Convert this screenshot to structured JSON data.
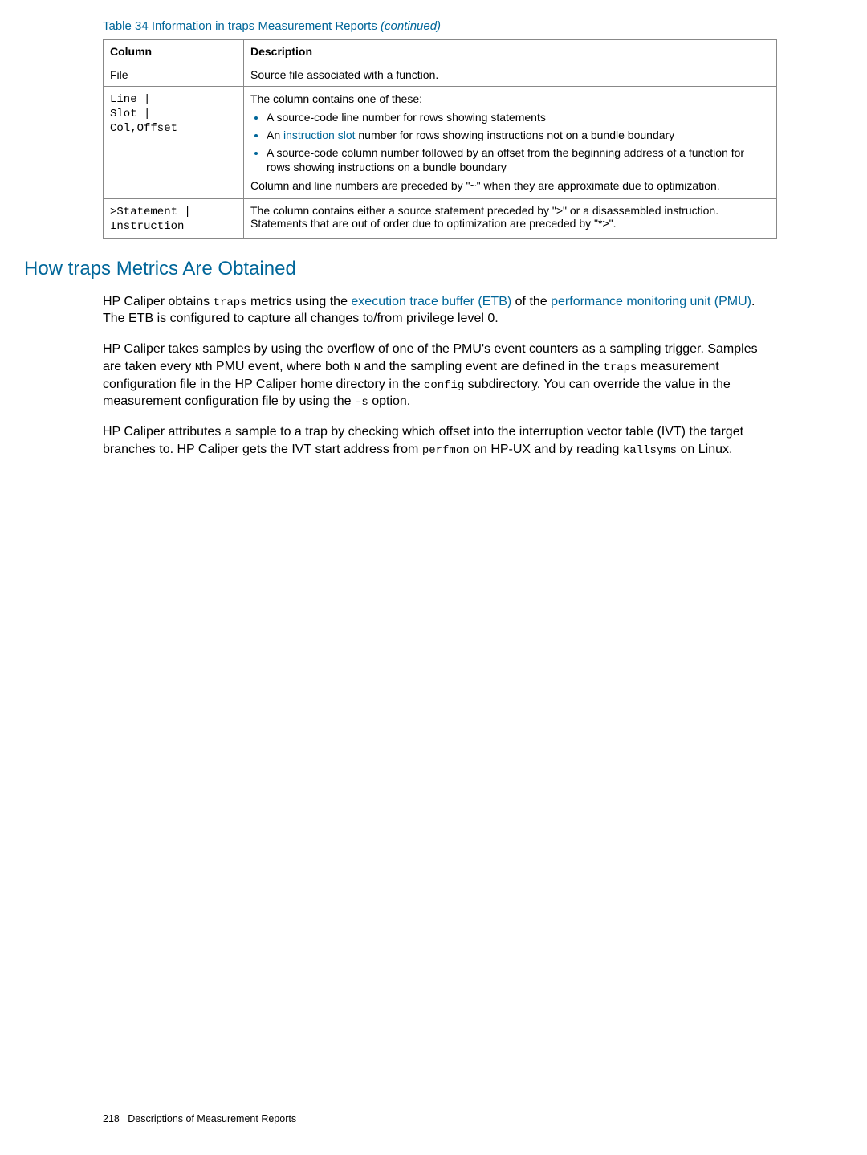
{
  "tableTitle": {
    "main": "Table 34 Information in traps Measurement Reports",
    "continued": " (continued)"
  },
  "table": {
    "headers": [
      "Column",
      "Description"
    ],
    "rows": {
      "file": {
        "col": "File",
        "desc": "Source file associated with a function."
      },
      "lineSlot": {
        "col_line1": "Line |",
        "col_line2": "Slot |",
        "col_line3": "Col,Offset",
        "intro": "The column contains one of these:",
        "b1": "A source-code line number for rows showing statements",
        "b2_pre": "An ",
        "b2_link": "instruction slot",
        "b2_post": " number for rows showing instructions not on a bundle boundary",
        "b3": "A source-code column number followed by an offset from the beginning address of a function for rows showing instructions on a bundle boundary",
        "tail": "Column and line numbers are preceded by \"~\" when they are approximate due to optimization."
      },
      "statement": {
        "col_line1": ">Statement |",
        "col_line2": " Instruction",
        "desc": "The column contains either a source statement preceded by \">\" or a disassembled instruction. Statements that are out of order due to optimization are preceded by \"*>\"."
      }
    }
  },
  "section": {
    "heading": "How traps Metrics Are Obtained",
    "p1_a": "HP Caliper obtains ",
    "p1_mono1": "traps",
    "p1_b": " metrics using the ",
    "p1_link1": "execution trace buffer (ETB)",
    "p1_c": " of the ",
    "p1_link2": "performance monitoring unit (PMU)",
    "p1_d": ". The ETB is configured to capture all changes to/from privilege level 0.",
    "p2_a": "HP Caliper takes samples by using the overflow of one of the PMU's event counters as a sampling trigger. Samples are taken every ",
    "p2_mono1": "N",
    "p2_b": "th PMU event, where both ",
    "p2_mono2": "N",
    "p2_c": " and the sampling event are defined in the ",
    "p2_mono3": "traps",
    "p2_d": " measurement configuration file in the HP Caliper home directory in the ",
    "p2_mono4": "config",
    "p2_e": " subdirectory. You can override the value in the measurement configuration file by using the ",
    "p2_mono5": "-s",
    "p2_f": " option.",
    "p3_a": "HP Caliper attributes a sample to a trap by checking which offset into the interruption vector table (IVT) the target branches to. HP Caliper gets the IVT start address from ",
    "p3_mono1": "perfmon",
    "p3_b": " on HP-UX and by reading ",
    "p3_mono2": "kallsyms",
    "p3_c": " on Linux."
  },
  "footer": {
    "pageNum": "218",
    "label": "Descriptions of Measurement Reports"
  }
}
